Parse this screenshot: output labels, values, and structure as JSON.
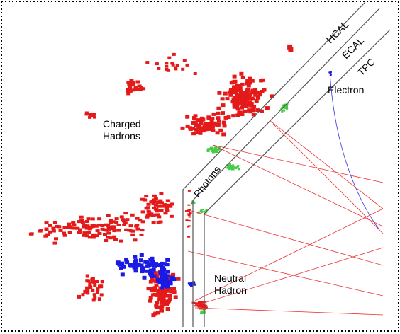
{
  "labels": {
    "hcal": "HCAL",
    "ecal": "ECAL",
    "tpc": "TPC",
    "electron": "Electron",
    "charged_hadrons": [
      "Charged",
      "Hadrons"
    ],
    "photons": "Photons",
    "neutral_hadron": [
      "Neutral",
      "Hadron"
    ]
  }
}
